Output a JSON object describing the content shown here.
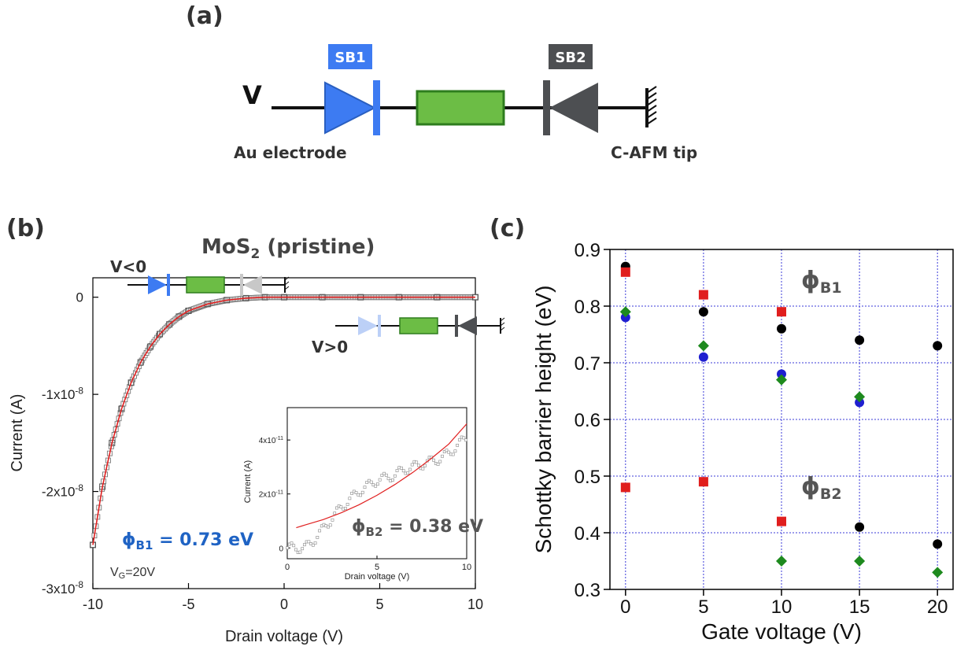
{
  "panel_a": {
    "label": "(a)",
    "v_label": "V",
    "sb1": "SB1",
    "sb2": "SB2",
    "left_caption": "Au electrode",
    "right_caption": "C-AFM tip"
  },
  "panel_b": {
    "label": "(b)",
    "title_main": "MoS",
    "title_sub": "2",
    "title_tail": " (pristine)",
    "vneg": "V<0",
    "vpos": "V>0",
    "phi_b1_sym": "ϕ",
    "phi_b1_sub": "B1",
    "phi_b1_val": " = 0.73 eV",
    "phi_b2_sym": "ϕ",
    "phi_b2_sub": "B2",
    "phi_b2_val": " = 0.38 eV",
    "vg_main": "V",
    "vg_sub": "G",
    "vg_tail": "=20V"
  },
  "panel_c": {
    "label": "(c)",
    "phi1_sym": "ϕ",
    "phi1_sub": "B1",
    "phi2_sym": "ϕ",
    "phi2_sub": "B2"
  },
  "colors": {
    "sb1_blue": "#3d7bf2",
    "sb2_gray": "#4d4f52",
    "green": "#6cbd45",
    "fit_red": "#e02020",
    "phi1_text": "#1f63c4",
    "phi2_text": "#555555"
  },
  "chart_data": [
    {
      "type": "line",
      "panel": "b",
      "xlabel": "Drain voltage (V)",
      "ylabel": "Current (A)",
      "xlim": [
        -10,
        10
      ],
      "ylim": [
        -3e-08,
        2e-09
      ],
      "xticks": [
        -10,
        -5,
        0,
        5,
        10
      ],
      "yticks": [
        {
          "v": 0,
          "label": "0"
        },
        {
          "v": -1e-08,
          "label": "-1x10-8"
        },
        {
          "v": -2e-08,
          "label": "-2x10-8"
        },
        {
          "v": -3e-08,
          "label": "-3x10-8"
        }
      ],
      "series": [
        {
          "kind": "measured",
          "marker": "open-square",
          "x": [
            -10,
            -9.5,
            -9,
            -8.5,
            -8,
            -7.5,
            -7,
            -6.5,
            -6,
            -5.5,
            -5,
            -4,
            -3,
            -2,
            -1,
            0,
            2,
            4,
            6,
            8,
            10
          ],
          "y": [
            -2.55e-08,
            -1.95e-08,
            -1.5e-08,
            -1.15e-08,
            -8.8e-09,
            -6.7e-09,
            -5.1e-09,
            -3.8e-09,
            -2.8e-09,
            -2e-09,
            -1.4e-09,
            -7e-10,
            -3e-10,
            -1e-10,
            0,
            0,
            0,
            0,
            0,
            0,
            0
          ]
        },
        {
          "kind": "fit",
          "color": "#e02020",
          "x": [
            -10,
            -9.5,
            -9,
            -8.5,
            -8,
            -7.5,
            -7,
            -6.5,
            -6,
            -5.5,
            -5,
            -4,
            -3,
            -2,
            -1,
            0,
            2,
            4,
            6,
            8,
            10
          ],
          "y": [
            -2.55e-08,
            -1.95e-08,
            -1.5e-08,
            -1.15e-08,
            -8.8e-09,
            -6.7e-09,
            -5.1e-09,
            -3.8e-09,
            -2.8e-09,
            -2e-09,
            -1.4e-09,
            -7e-10,
            -3e-10,
            -1e-10,
            0,
            0,
            0,
            0,
            0,
            0,
            0
          ]
        }
      ]
    },
    {
      "type": "scatter",
      "panel": "b-inset",
      "xlabel": "Drain voltage (V)",
      "ylabel": "Current (A)",
      "xlim": [
        0,
        10
      ],
      "ylim": [
        -4e-12,
        5.2e-11
      ],
      "xticks": [
        0,
        5,
        10
      ],
      "yticks": [
        {
          "v": 0,
          "label": "0"
        },
        {
          "v": 2e-11,
          "label": "2x10-11"
        },
        {
          "v": 4e-11,
          "label": "4x10-11"
        }
      ],
      "series": [
        {
          "kind": "measured",
          "marker": "open-square",
          "x": [
            0,
            0.5,
            1,
            1.5,
            2,
            2.5,
            3,
            3.5,
            4,
            4.5,
            5,
            5.5,
            6,
            6.5,
            7,
            7.5,
            8,
            8.5,
            9,
            9.5,
            10
          ],
          "y": [
            0,
            0,
            0,
            3e-12,
            7e-12,
            1.1e-11,
            1.5e-11,
            1.8e-11,
            2.1e-11,
            2.3e-11,
            2.5e-11,
            2.6e-11,
            2.7e-11,
            2.9e-11,
            3e-11,
            3.1e-11,
            3.2e-11,
            3.3e-11,
            3.5e-11,
            3.8e-11,
            4.1e-11
          ]
        },
        {
          "kind": "fit",
          "color": "#e02020",
          "x": [
            0.5,
            1,
            2,
            3,
            4,
            5,
            6,
            7,
            8,
            9,
            10
          ],
          "y": [
            7.5e-12,
            8.5e-12,
            1.05e-11,
            1.3e-11,
            1.6e-11,
            1.95e-11,
            2.35e-11,
            2.8e-11,
            3.3e-11,
            3.85e-11,
            4.6e-11
          ]
        }
      ]
    },
    {
      "type": "scatter",
      "panel": "c",
      "xlabel": "Gate voltage (V)",
      "ylabel": "Schottky barrier height (eV)",
      "xlim": [
        -1,
        21
      ],
      "ylim": [
        0.3,
        0.9
      ],
      "xticks": [
        0,
        5,
        10,
        15,
        20
      ],
      "yticks": [
        0.3,
        0.4,
        0.5,
        0.6,
        0.7,
        0.8,
        0.9
      ],
      "grid": true,
      "series": [
        {
          "marker": "circle",
          "color": "#000000",
          "x": [
            0,
            5,
            10,
            15,
            20,
            15,
            20
          ],
          "y": [
            0.87,
            0.79,
            0.76,
            0.74,
            0.73,
            0.41,
            0.38
          ]
        },
        {
          "marker": "square",
          "color": "#e01e1e",
          "x": [
            0,
            5,
            10,
            0,
            5,
            10
          ],
          "y": [
            0.86,
            0.82,
            0.79,
            0.48,
            0.49,
            0.42
          ]
        },
        {
          "marker": "circle",
          "color": "#1f1fd0",
          "x": [
            0,
            5,
            10,
            15
          ],
          "y": [
            0.78,
            0.71,
            0.68,
            0.63
          ]
        },
        {
          "marker": "diamond",
          "color": "#1e8a1e",
          "x": [
            0,
            5,
            10,
            15,
            10,
            15,
            20
          ],
          "y": [
            0.79,
            0.73,
            0.67,
            0.64,
            0.35,
            0.35,
            0.33
          ]
        }
      ]
    }
  ]
}
